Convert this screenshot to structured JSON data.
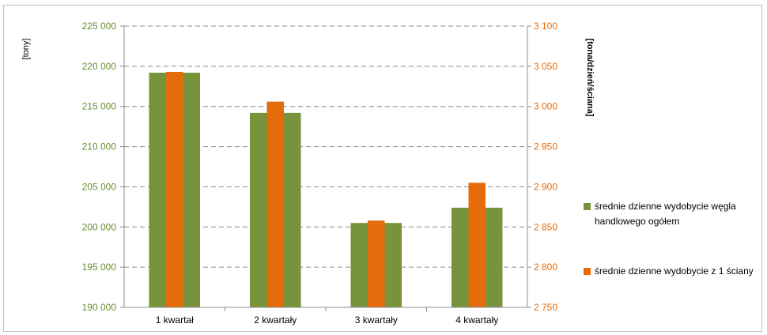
{
  "chart_data": {
    "type": "bar",
    "title": "",
    "categories": [
      "1 kwartał",
      "2 kwartały",
      "3 kwartały",
      "4 kwartały"
    ],
    "series": [
      {
        "name": "średnie dzienne wydobycie węgla handlowego ogółem",
        "axis": "left",
        "values": [
          219200,
          214200,
          200500,
          202400
        ],
        "color": "#77933c"
      },
      {
        "name": "średnie dzienne wydobycie z 1 ściany",
        "axis": "right",
        "values": [
          3043,
          3006,
          2858,
          2905
        ],
        "color": "#e46c0a"
      }
    ],
    "ylabel": "[tony]",
    "ylabel_right": "[tona/dzień/ściana]",
    "ylim": [
      190000,
      225000
    ],
    "ylim_right": [
      2750,
      3100
    ],
    "yticks": [
      "190 000",
      "195 000",
      "200 000",
      "205 000",
      "210 000",
      "215 000",
      "220 000",
      "225 000"
    ],
    "yticks_right": [
      "2 750",
      "2 800",
      "2 850",
      "2 900",
      "2 950",
      "3 000",
      "3 050",
      "3 100"
    ],
    "grid": true,
    "legend_position": "right"
  }
}
